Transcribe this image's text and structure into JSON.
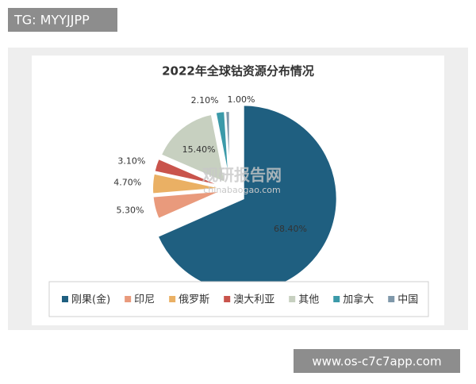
{
  "header": {
    "tag": "TG: MYYJJPP"
  },
  "chart_data": {
    "type": "pie",
    "title": "2022年全球钴资源分布情况",
    "categories": [
      "刚果(金)",
      "印尼",
      "俄罗斯",
      "澳大利亚",
      "其他",
      "加拿大",
      "中国"
    ],
    "values": [
      68.4,
      5.3,
      4.7,
      3.1,
      15.4,
      2.1,
      1.0
    ],
    "value_labels": [
      "68.40%",
      "5.30%",
      "4.70%",
      "3.10%",
      "15.40%",
      "2.10%",
      "1.00%"
    ],
    "colors": [
      "#1f5f80",
      "#e99a7c",
      "#eab064",
      "#c9544c",
      "#c7d0c0",
      "#3b9aa9",
      "#7f98aa"
    ],
    "legend": "bottom"
  },
  "watermark": {
    "name": "观研报告网",
    "url": "chinabaogao.com"
  },
  "footer": {
    "url": "www.os-c7c7app.com"
  }
}
